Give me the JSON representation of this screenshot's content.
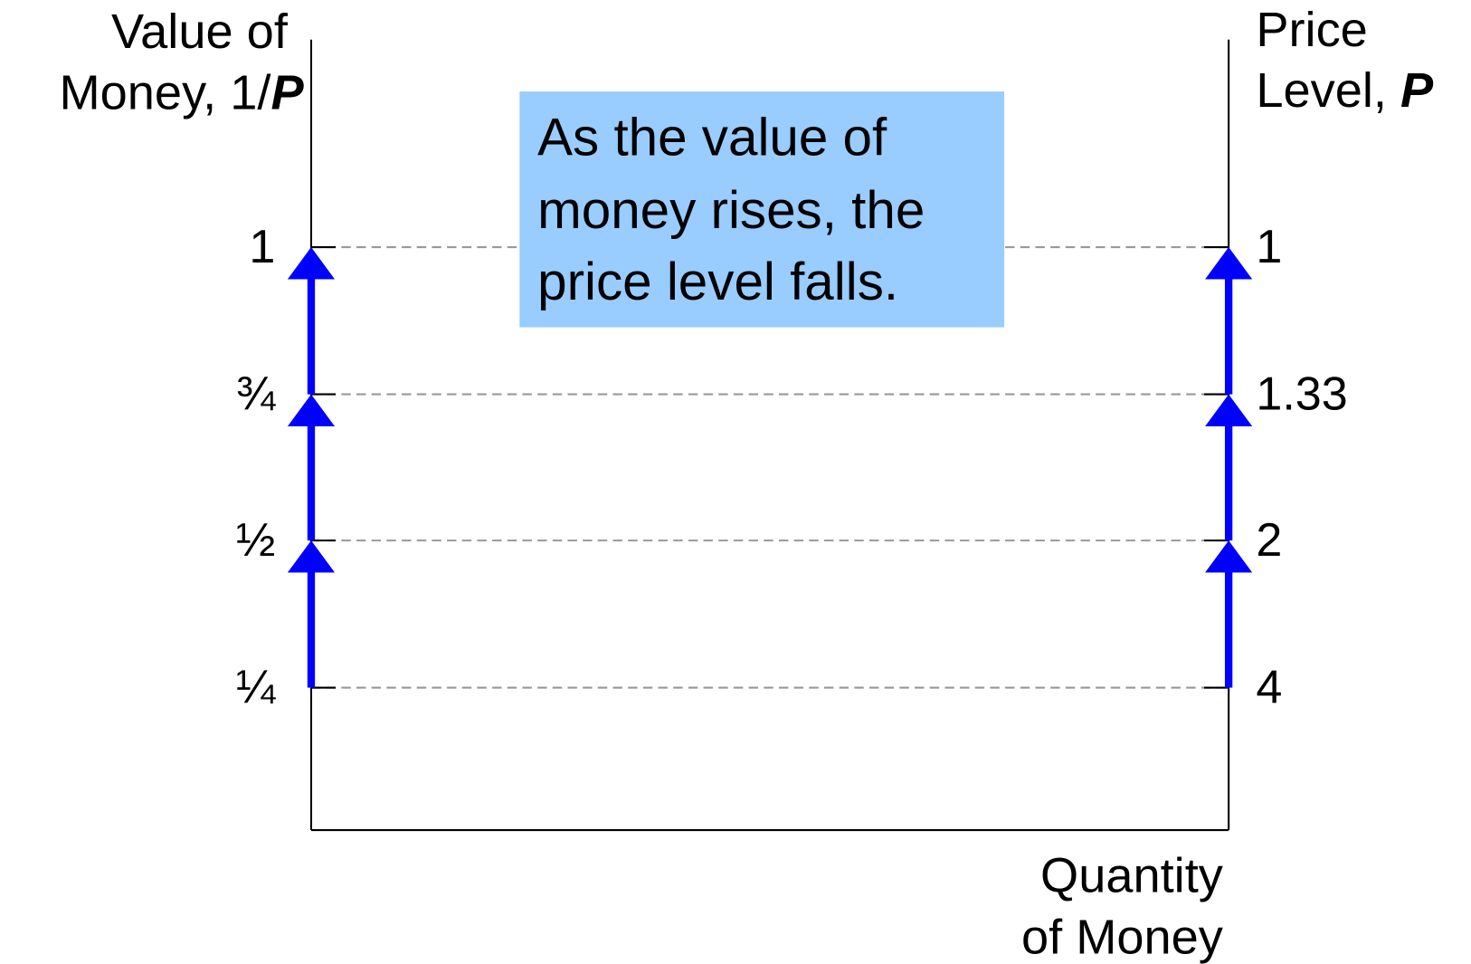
{
  "left_axis": {
    "label_line1": "Value of",
    "label_line2": "Money, 1/",
    "label_variable": "P",
    "ticks": [
      "1",
      "¾",
      "½",
      "¼"
    ]
  },
  "right_axis": {
    "label_line1": "Price",
    "label_line2": "Level, ",
    "label_variable": "P",
    "ticks": [
      "1",
      "1.33",
      "2",
      "4"
    ]
  },
  "x_axis": {
    "label_line1": "Quantity",
    "label_line2": "of Money"
  },
  "callout": {
    "lines": [
      "As the value of",
      "money rises, the",
      "price level falls."
    ]
  }
}
